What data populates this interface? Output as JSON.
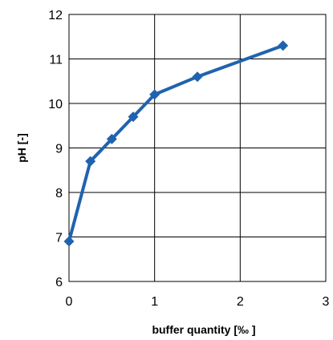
{
  "chart_data": {
    "type": "line",
    "title": "",
    "xlabel": "buffer quantity [‰ ]",
    "ylabel": "pH [-]",
    "xlim": [
      0,
      3
    ],
    "ylim": [
      6,
      12
    ],
    "x_ticks": [
      "0",
      "1",
      "2",
      "3"
    ],
    "y_ticks": [
      "6",
      "7",
      "8",
      "9",
      "10",
      "11",
      "12"
    ],
    "grid": true,
    "legend": "none",
    "series": [
      {
        "color": "#1F63AE",
        "marker": "diamond",
        "points": [
          {
            "x": 0,
            "y": 6.9
          },
          {
            "x": 0.25,
            "y": 8.7
          },
          {
            "x": 0.5,
            "y": 9.2
          },
          {
            "x": 0.75,
            "y": 9.7
          },
          {
            "x": 1,
            "y": 10.2
          },
          {
            "x": 1.5,
            "y": 10.6
          },
          {
            "x": 2.5,
            "y": 11.3
          }
        ]
      }
    ]
  }
}
